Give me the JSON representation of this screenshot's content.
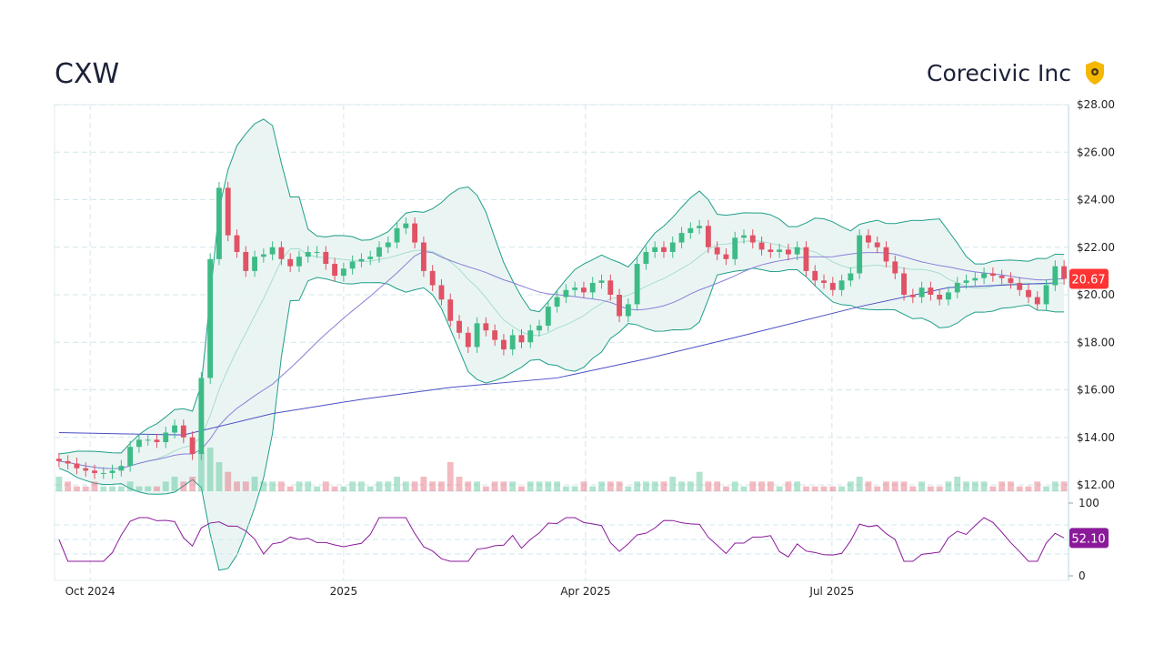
{
  "header": {
    "ticker": "CXW",
    "company": "Corecivic Inc"
  },
  "colors": {
    "up": "#3dbb86",
    "down": "#e05264",
    "band": "#1f9e89",
    "band_fill": "#e8f4f2",
    "ma_slow": "#4a4fc4",
    "ma_mid": "#8a7fd8",
    "rsi": "#8b1a9a",
    "last_price_bg": "#ff3333",
    "rsi_badge_bg": "#8b1a9a"
  },
  "chart_data": {
    "type": "candlestick",
    "price_axis": {
      "ylim": [
        12,
        28
      ],
      "ticks": [
        "$28.00",
        "$26.00",
        "$24.00",
        "$22.00",
        "$20.00",
        "$18.00",
        "$16.00",
        "$14.00",
        "$12.00"
      ],
      "values": [
        28,
        26,
        24,
        22,
        20,
        18,
        16,
        14,
        12
      ]
    },
    "x_ticks": [
      {
        "label": "Oct 2024",
        "index": 4
      },
      {
        "label": "2025",
        "index": 32.5
      },
      {
        "label": "Apr 2025",
        "index": 59.7
      },
      {
        "label": "Jul 2025",
        "index": 87.4
      }
    ],
    "closes": [
      13.0,
      12.9,
      12.7,
      12.6,
      12.5,
      12.5,
      12.6,
      12.8,
      13.6,
      13.9,
      13.9,
      13.8,
      14.2,
      14.5,
      14.0,
      13.3,
      16.5,
      21.5,
      24.5,
      22.5,
      21.8,
      21.0,
      21.6,
      21.7,
      22.0,
      21.5,
      21.2,
      21.6,
      21.8,
      21.8,
      21.3,
      20.8,
      21.1,
      21.4,
      21.5,
      21.6,
      22.0,
      22.2,
      22.8,
      23.0,
      22.2,
      21.0,
      20.4,
      19.8,
      18.9,
      18.4,
      17.8,
      18.8,
      18.5,
      18.1,
      17.7,
      18.3,
      18.0,
      18.5,
      18.7,
      19.5,
      19.9,
      20.2,
      20.3,
      20.1,
      20.5,
      20.6,
      20.0,
      19.1,
      19.6,
      21.3,
      21.8,
      22.0,
      21.8,
      22.2,
      22.6,
      22.8,
      22.9,
      22.0,
      21.7,
      21.5,
      22.4,
      22.5,
      22.2,
      21.9,
      21.8,
      21.9,
      21.7,
      22.0,
      21.0,
      20.6,
      20.5,
      20.2,
      20.6,
      20.9,
      22.5,
      22.2,
      22.0,
      21.4,
      20.9,
      20.0,
      19.9,
      20.3,
      20.0,
      19.8,
      20.1,
      20.5,
      20.6,
      20.7,
      20.9,
      20.8,
      20.7,
      20.5,
      20.2,
      19.9,
      19.6,
      20.4,
      21.2,
      20.67
    ],
    "volumes": [
      3,
      2,
      1,
      1,
      2,
      1,
      1,
      1,
      2,
      1,
      1,
      1,
      2,
      3,
      2,
      3,
      8,
      9,
      6,
      4,
      2,
      2,
      3,
      2,
      2,
      2,
      1,
      2,
      2,
      1,
      2,
      1,
      1,
      2,
      2,
      1,
      2,
      2,
      3,
      2,
      2,
      3,
      2,
      2,
      6,
      3,
      2,
      2,
      1,
      2,
      2,
      2,
      1,
      2,
      2,
      2,
      2,
      1,
      1,
      2,
      1,
      2,
      2,
      2,
      1,
      2,
      2,
      2,
      2,
      3,
      2,
      2,
      4,
      2,
      2,
      1,
      2,
      1,
      2,
      2,
      2,
      1,
      2,
      2,
      1,
      1,
      1,
      1,
      1,
      2,
      3,
      2,
      1,
      2,
      2,
      2,
      1,
      2,
      1,
      1,
      2,
      3,
      2,
      2,
      2,
      1,
      2,
      2,
      1,
      1,
      2,
      1,
      2,
      2
    ],
    "ma_slow_knots": [
      [
        0,
        14.2
      ],
      [
        14,
        14.1
      ],
      [
        24,
        15.0
      ],
      [
        34,
        15.6
      ],
      [
        44,
        16.1
      ],
      [
        56,
        16.5
      ],
      [
        66,
        17.3
      ],
      [
        76,
        18.2
      ],
      [
        90,
        19.5
      ],
      [
        100,
        20.3
      ],
      [
        112,
        20.5
      ]
    ],
    "last_price": "20.67",
    "rsi": {
      "ylim": [
        0,
        100
      ],
      "ticks": [
        "100",
        "0"
      ],
      "levels": [
        70,
        50,
        30
      ],
      "last": "52.10"
    }
  }
}
